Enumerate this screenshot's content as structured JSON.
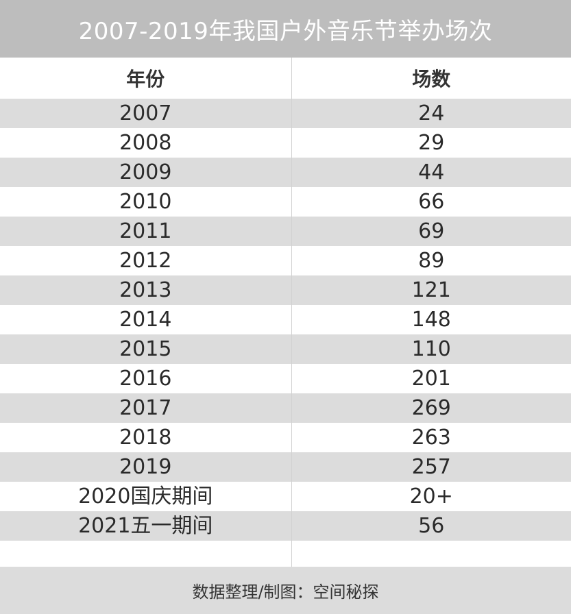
{
  "title": "2007-2019年我国户外音乐节举办场次",
  "headers": [
    "年份",
    "场数"
  ],
  "rows": [
    [
      "2007",
      "24"
    ],
    [
      "2008",
      "29"
    ],
    [
      "2009",
      "44"
    ],
    [
      "2010",
      "66"
    ],
    [
      "2011",
      "69"
    ],
    [
      "2012",
      "89"
    ],
    [
      "2013",
      "121"
    ],
    [
      "2014",
      "148"
    ],
    [
      "2015",
      "110"
    ],
    [
      "2016",
      "201"
    ],
    [
      "2017",
      "269"
    ],
    [
      "2018",
      "263"
    ],
    [
      "2019",
      "257"
    ],
    [
      "2020国庆期间",
      "20+"
    ],
    [
      "2021五一期间",
      "56"
    ]
  ],
  "footer": "数据整理/制图：空间秘探",
  "chart_data": {
    "type": "table",
    "title": "2007-2019年我国户外音乐节举办场次",
    "columns": [
      "年份",
      "场数"
    ],
    "categories": [
      "2007",
      "2008",
      "2009",
      "2010",
      "2011",
      "2012",
      "2013",
      "2014",
      "2015",
      "2016",
      "2017",
      "2018",
      "2019",
      "2020国庆期间",
      "2021五一期间"
    ],
    "values": [
      24,
      29,
      44,
      66,
      69,
      89,
      121,
      148,
      110,
      201,
      269,
      263,
      257,
      "20+",
      56
    ]
  },
  "colors": {
    "title_bg": "#bdbdbd",
    "stripe": "#dcdcdc",
    "footer_bg": "#dcdcdc"
  }
}
